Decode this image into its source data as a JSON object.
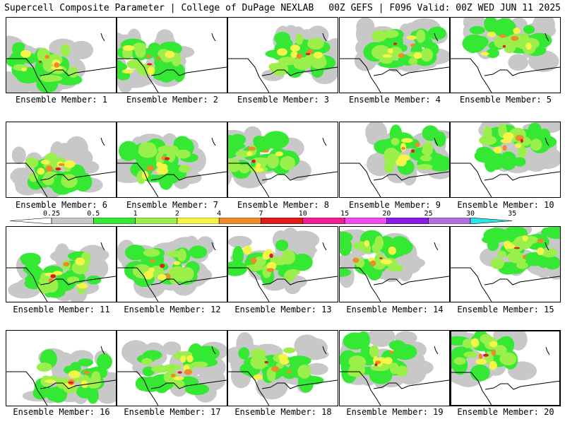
{
  "header": {
    "left": "Supercell Composite Parameter | College of DuPage NEXLAB",
    "right": "00Z GEFS | F096 Valid: 00Z WED JUN 11 2025"
  },
  "colorbar": {
    "ticks": [
      "0.25",
      "0.5",
      "1",
      "2",
      "4",
      "7",
      "10",
      "15",
      "20",
      "25",
      "30",
      "35"
    ],
    "colors": [
      "#c8c8c8",
      "#34e834",
      "#9bef4a",
      "#f5f547",
      "#ef8a2a",
      "#e01b1b",
      "#f21c93",
      "#f04af0",
      "#8a1ce6",
      "#b36ee0",
      "#29e5e5"
    ]
  },
  "members": [
    {
      "label": "Ensemble Member: 1"
    },
    {
      "label": "Ensemble Member: 2"
    },
    {
      "label": "Ensemble Member: 3"
    },
    {
      "label": "Ensemble Member: 4"
    },
    {
      "label": "Ensemble Member: 5"
    },
    {
      "label": "Ensemble Member: 6"
    },
    {
      "label": "Ensemble Member: 7"
    },
    {
      "label": "Ensemble Member: 8"
    },
    {
      "label": "Ensemble Member: 9"
    },
    {
      "label": "Ensemble Member: 10"
    },
    {
      "label": "Ensemble Member: 11"
    },
    {
      "label": "Ensemble Member: 12"
    },
    {
      "label": "Ensemble Member: 13"
    },
    {
      "label": "Ensemble Member: 14"
    },
    {
      "label": "Ensemble Member: 15"
    },
    {
      "label": "Ensemble Member: 16"
    },
    {
      "label": "Ensemble Member: 17"
    },
    {
      "label": "Ensemble Member: 18"
    },
    {
      "label": "Ensemble Member: 19"
    },
    {
      "label": "Ensemble Member: 20"
    }
  ]
}
